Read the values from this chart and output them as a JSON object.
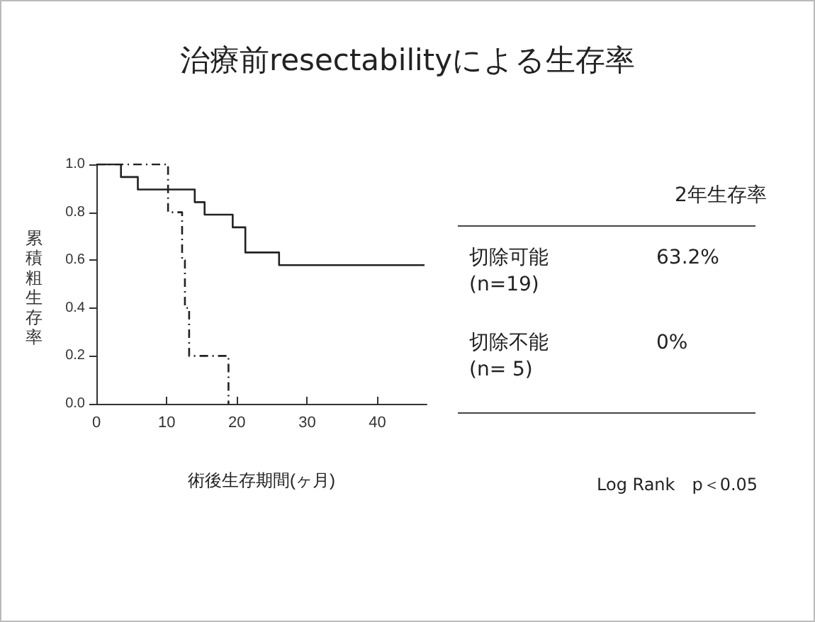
{
  "chart_data": {
    "type": "step",
    "title": "治療前resectabilityによる生存率",
    "xlabel": "術後生存期間(ヶ月)",
    "ylabel": "累積粗生存率",
    "series": [
      {
        "color": "#222222",
        "line_style": "solid",
        "x": [
          0,
          3.5,
          5.9,
          14,
          15.4,
          19.4,
          21.2,
          26,
          46.7
        ],
        "values": [
          1,
          0.947,
          0.895,
          0.842,
          0.79,
          0.737,
          0.632,
          0.579,
          0.579
        ]
      },
      {
        "color": "#222222",
        "line_style": "dashed",
        "x": [
          0,
          10.2,
          12.2,
          12.6,
          13.2,
          18.8
        ],
        "values": [
          1,
          0.8,
          0.6,
          0.4,
          0.2,
          0
        ]
      }
    ],
    "xlim": [
      0,
      47
    ],
    "xticks": [
      0,
      10,
      20,
      30,
      40
    ],
    "ylim": [
      0,
      1
    ],
    "yticks": [
      {
        "value": 0,
        "label": "0.0"
      },
      {
        "value": 0.2,
        "label": "0.2"
      },
      {
        "value": 0.4,
        "label": "0.4"
      },
      {
        "value": 0.6,
        "label": "0.6"
      },
      {
        "value": 0.8,
        "label": "0.8"
      },
      {
        "value": 1,
        "label": "1.0"
      }
    ],
    "grid": false,
    "annotations": [
      "2年生存率",
      "切除可能\n(n=19)",
      "63.2%",
      "切除不能\n(n= 5)",
      "0%",
      "Log Rank　p＜0.05"
    ]
  }
}
